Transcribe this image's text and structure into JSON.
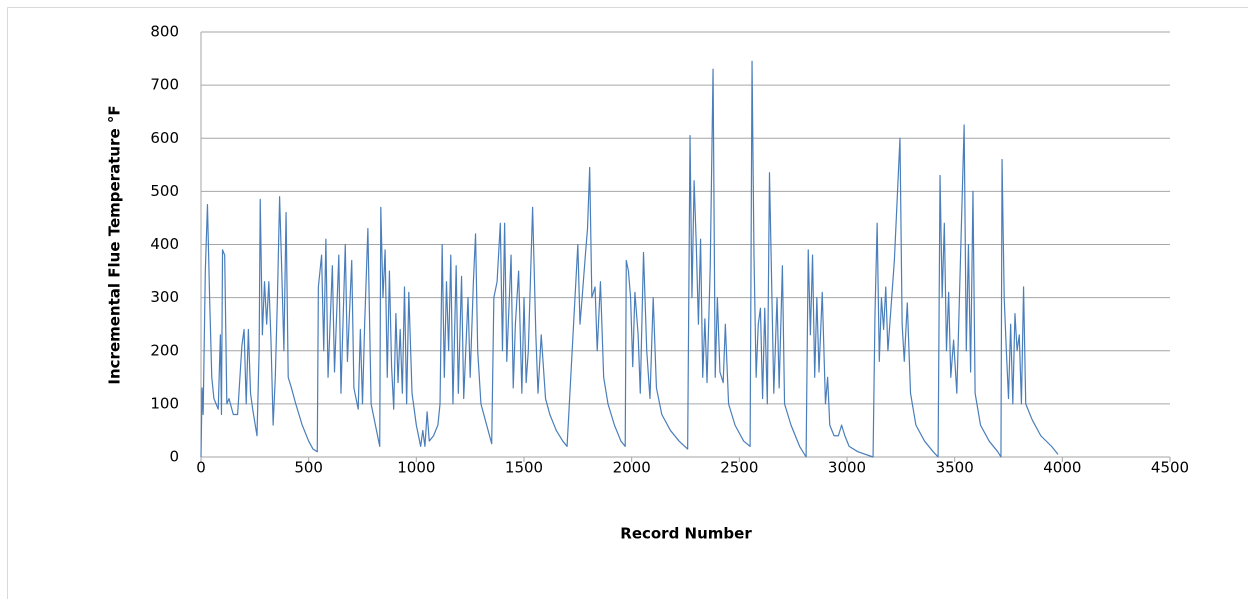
{
  "chart_data": {
    "type": "line",
    "x_label": "Record Number",
    "y_label": "Incremental Flue Temperature °F",
    "color": "#4a7ebb",
    "grid": true,
    "xlim": [
      0,
      4500
    ],
    "xticks": [
      0,
      500,
      1000,
      1500,
      2000,
      2500,
      3000,
      3500,
      4000,
      4500
    ],
    "ylim": [
      0,
      800
    ],
    "yticks": [
      0,
      100,
      200,
      300,
      400,
      500,
      600,
      700,
      800
    ],
    "x": [
      0,
      5,
      10,
      20,
      30,
      40,
      50,
      60,
      70,
      80,
      90,
      95,
      100,
      110,
      120,
      130,
      150,
      170,
      190,
      200,
      210,
      220,
      230,
      240,
      260,
      270,
      275,
      285,
      295,
      305,
      315,
      325,
      335,
      345,
      355,
      365,
      375,
      385,
      395,
      405,
      420,
      440,
      470,
      500,
      520,
      540,
      545,
      560,
      570,
      580,
      590,
      610,
      620,
      640,
      650,
      670,
      680,
      700,
      710,
      730,
      740,
      750,
      760,
      775,
      790,
      810,
      830,
      835,
      845,
      855,
      865,
      875,
      885,
      895,
      905,
      915,
      925,
      935,
      945,
      955,
      965,
      980,
      1000,
      1020,
      1030,
      1040,
      1050,
      1060,
      1080,
      1100,
      1110,
      1120,
      1130,
      1140,
      1150,
      1160,
      1170,
      1185,
      1195,
      1210,
      1220,
      1240,
      1250,
      1265,
      1275,
      1285,
      1300,
      1320,
      1340,
      1350,
      1360,
      1375,
      1390,
      1400,
      1410,
      1420,
      1440,
      1450,
      1460,
      1475,
      1490,
      1500,
      1510,
      1520,
      1540,
      1555,
      1565,
      1580,
      1600,
      1620,
      1650,
      1680,
      1700,
      1750,
      1760,
      1770,
      1785,
      1795,
      1805,
      1815,
      1830,
      1840,
      1855,
      1870,
      1890,
      1920,
      1950,
      1970,
      1975,
      1985,
      1995,
      2005,
      2015,
      2030,
      2040,
      2055,
      2070,
      2085,
      2100,
      2115,
      2140,
      2180,
      2220,
      2260,
      2271,
      2280,
      2290,
      2300,
      2310,
      2320,
      2330,
      2340,
      2350,
      2365,
      2378,
      2388,
      2398,
      2410,
      2425,
      2435,
      2450,
      2480,
      2520,
      2550,
      2559,
      2568,
      2578,
      2588,
      2598,
      2608,
      2618,
      2630,
      2640,
      2650,
      2660,
      2675,
      2685,
      2700,
      2710,
      2740,
      2780,
      2810,
      2820,
      2830,
      2840,
      2850,
      2860,
      2870,
      2885,
      2900,
      2910,
      2920,
      2940,
      2960,
      2975,
      2990,
      3010,
      3050,
      3121,
      3130,
      3140,
      3150,
      3160,
      3170,
      3180,
      3190,
      3220,
      3246,
      3256,
      3266,
      3280,
      3295,
      3320,
      3360,
      3400,
      3423,
      3432,
      3442,
      3452,
      3462,
      3472,
      3482,
      3495,
      3510,
      3544,
      3554,
      3564,
      3574,
      3585,
      3595,
      3620,
      3660,
      3700,
      3715,
      3720,
      3730,
      3740,
      3750,
      3760,
      3770,
      3780,
      3790,
      3800,
      3810,
      3820,
      3830,
      3860,
      3900,
      3950,
      3980
    ],
    "values": [
      0,
      130,
      80,
      350,
      475,
      300,
      150,
      110,
      100,
      90,
      230,
      80,
      390,
      380,
      100,
      110,
      80,
      80,
      210,
      240,
      100,
      240,
      120,
      90,
      40,
      200,
      485,
      230,
      330,
      250,
      330,
      220,
      60,
      150,
      300,
      490,
      350,
      200,
      460,
      150,
      130,
      100,
      60,
      30,
      15,
      10,
      320,
      380,
      200,
      410,
      150,
      360,
      160,
      380,
      120,
      400,
      180,
      370,
      130,
      90,
      240,
      100,
      250,
      430,
      100,
      60,
      20,
      470,
      300,
      390,
      150,
      350,
      170,
      90,
      270,
      140,
      240,
      120,
      320,
      100,
      310,
      120,
      60,
      20,
      50,
      20,
      85,
      30,
      40,
      60,
      100,
      400,
      150,
      330,
      200,
      380,
      100,
      360,
      120,
      340,
      110,
      300,
      150,
      330,
      420,
      200,
      100,
      70,
      40,
      25,
      300,
      330,
      440,
      200,
      440,
      180,
      380,
      130,
      250,
      350,
      120,
      300,
      140,
      200,
      470,
      230,
      120,
      230,
      110,
      80,
      50,
      30,
      20,
      400,
      250,
      300,
      380,
      430,
      545,
      300,
      320,
      200,
      330,
      150,
      100,
      60,
      30,
      20,
      370,
      350,
      300,
      170,
      310,
      230,
      120,
      385,
      200,
      110,
      300,
      130,
      80,
      50,
      30,
      15,
      605,
      300,
      520,
      400,
      250,
      410,
      150,
      260,
      140,
      360,
      730,
      150,
      300,
      160,
      140,
      250,
      100,
      60,
      30,
      20,
      745,
      380,
      150,
      250,
      280,
      110,
      280,
      100,
      535,
      330,
      120,
      300,
      130,
      360,
      100,
      60,
      20,
      0,
      390,
      230,
      380,
      150,
      300,
      160,
      310,
      100,
      150,
      60,
      40,
      40,
      60,
      40,
      20,
      10,
      0,
      270,
      440,
      180,
      300,
      240,
      320,
      200,
      370,
      600,
      250,
      180,
      290,
      120,
      60,
      30,
      10,
      0,
      530,
      300,
      440,
      200,
      310,
      150,
      220,
      120,
      625,
      200,
      400,
      160,
      500,
      120,
      60,
      30,
      10,
      0,
      560,
      300,
      200,
      110,
      250,
      100,
      270,
      200,
      230,
      100,
      320,
      100,
      70,
      40,
      20,
      5
    ]
  }
}
